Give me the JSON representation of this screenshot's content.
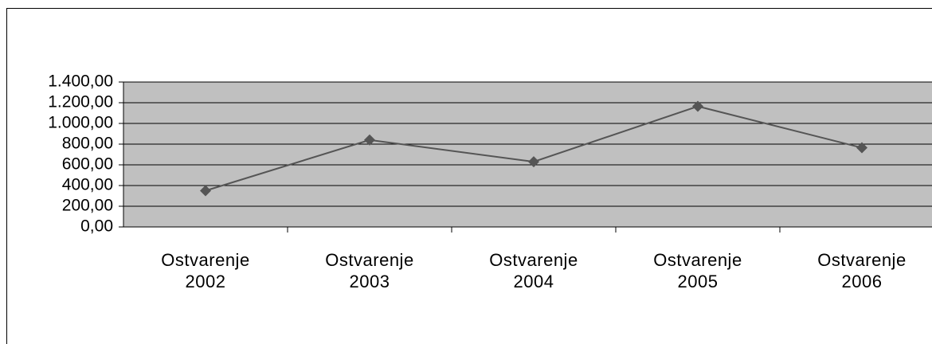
{
  "chart_data": {
    "type": "line",
    "categories": [
      "Ostvarenje 2002",
      "Ostvarenje 2003",
      "Ostvarenje 2004",
      "Ostvarenje 2005",
      "Ostvarenje 2006"
    ],
    "values": [
      350,
      840,
      630,
      1165,
      765
    ],
    "color": "#555555",
    "ylim": [
      0,
      1400
    ],
    "yticks": [
      {
        "value": 0,
        "label": "0,00"
      },
      {
        "value": 200,
        "label": "200,00"
      },
      {
        "value": 400,
        "label": "400,00"
      },
      {
        "value": 600,
        "label": "600,00"
      },
      {
        "value": 800,
        "label": "800,00"
      },
      {
        "value": 1000,
        "label": "1.000,00"
      },
      {
        "value": 1200,
        "label": "1.200,00"
      },
      {
        "value": 1400,
        "label": "1.400,00"
      }
    ],
    "grid": true
  }
}
